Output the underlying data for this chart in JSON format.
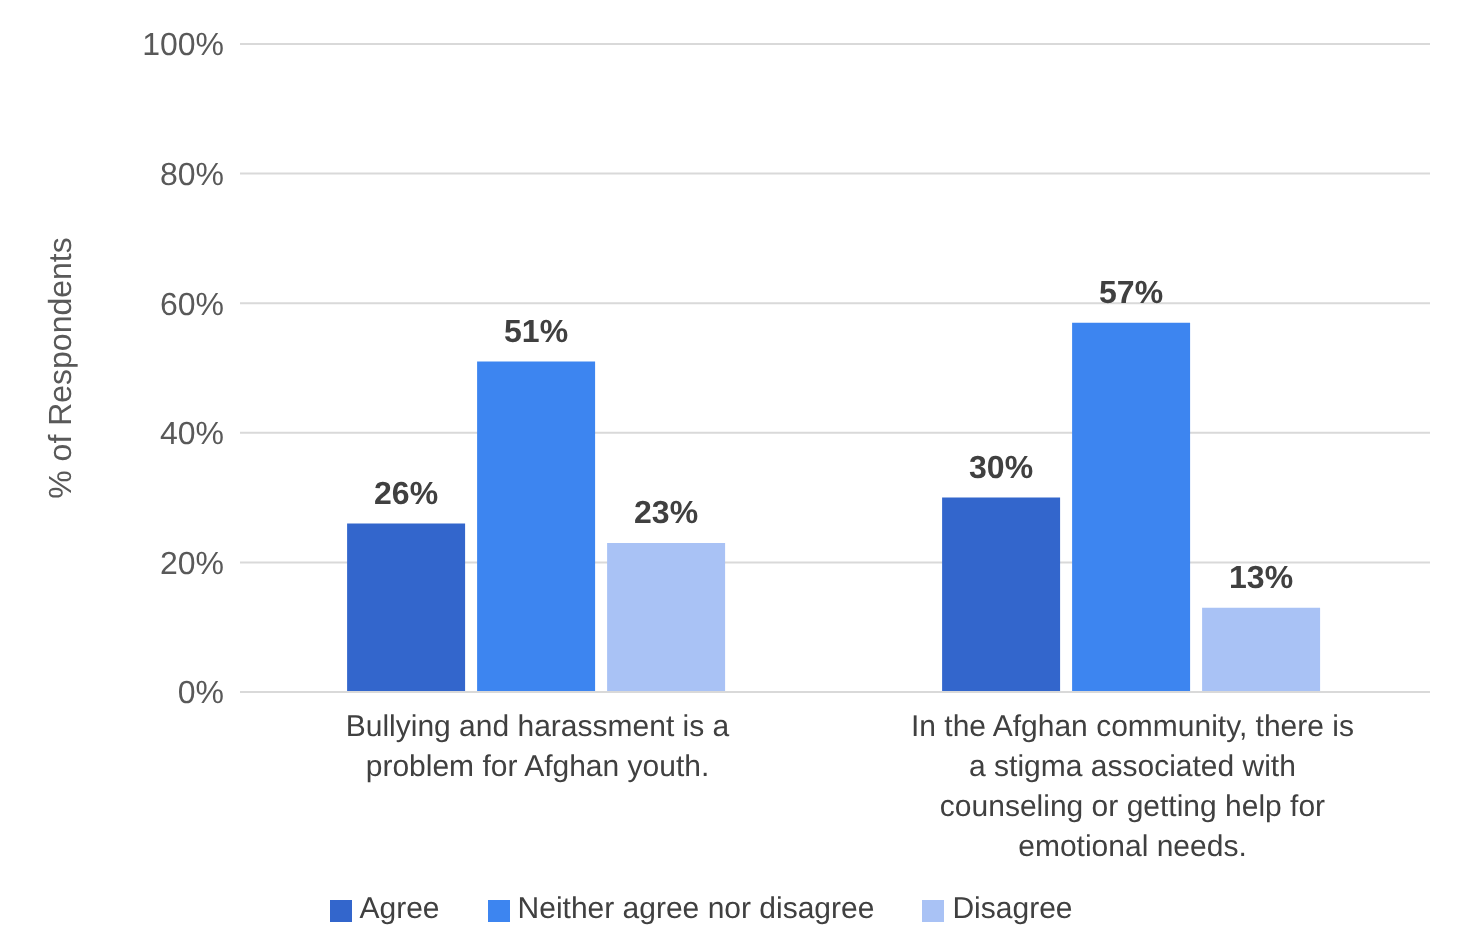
{
  "chart_data": {
    "type": "bar",
    "ylabel": "% of Respondents",
    "categories": [
      "Bullying and harassment is a problem for Afghan youth.",
      "In the Afghan community, there is a stigma associated with counseling or getting help for emotional needs."
    ],
    "series": [
      {
        "name": "Agree",
        "color": "#3366cc",
        "values": [
          26,
          30
        ],
        "value_labels": [
          "26%",
          "30%"
        ]
      },
      {
        "name": "Neither agree nor disagree",
        "color": "#3d85f0",
        "values": [
          51,
          57
        ],
        "value_labels": [
          "51%",
          "57%"
        ]
      },
      {
        "name": "Disagree",
        "color": "#a9c2f5",
        "values": [
          23,
          13
        ],
        "value_labels": [
          "23%",
          "13%"
        ]
      }
    ],
    "ylim": [
      0,
      100
    ],
    "yticks": [
      {
        "value": 0,
        "label": "0%"
      },
      {
        "value": 20,
        "label": "20%"
      },
      {
        "value": 40,
        "label": "40%"
      },
      {
        "value": 60,
        "label": "60%"
      },
      {
        "value": 80,
        "label": "80%"
      },
      {
        "value": 100,
        "label": "100%"
      }
    ],
    "grid": "y",
    "legend": "bottom"
  }
}
